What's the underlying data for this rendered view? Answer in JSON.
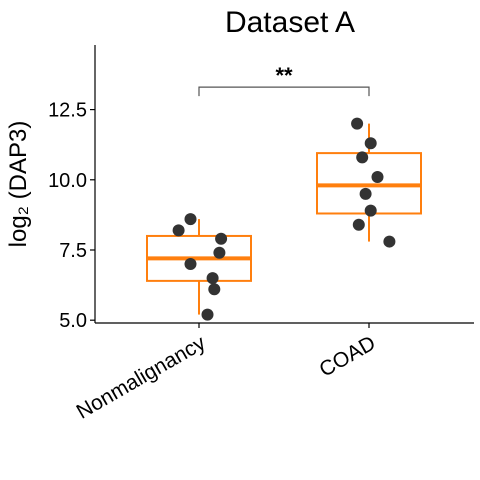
{
  "chart_data": {
    "type": "box",
    "title": "Dataset A",
    "ylabel": "log₂ (DAP3)",
    "xlabel": "",
    "categories": [
      "Nonmalignancy",
      "COAD"
    ],
    "ylim": [
      4.9,
      14.8
    ],
    "yticks": [
      5.0,
      7.5,
      10.0,
      12.5
    ],
    "ytick_labels": [
      "5.0",
      "7.5",
      "10.0",
      "12.5"
    ],
    "grid": false,
    "box_color": "#ff7f0e",
    "point_color": "#333333",
    "boxes": [
      {
        "category": "Nonmalignancy",
        "whisker_low": 5.2,
        "q1": 6.4,
        "median": 7.2,
        "q3": 8.0,
        "whisker_high": 8.6
      },
      {
        "category": "COAD",
        "whisker_low": 7.8,
        "q1": 8.8,
        "median": 9.8,
        "q3": 10.95,
        "whisker_high": 12.0
      }
    ],
    "points": [
      {
        "category": "Nonmalignancy",
        "jitter": -0.05,
        "y": 8.6
      },
      {
        "category": "Nonmalignancy",
        "jitter": -0.12,
        "y": 8.2
      },
      {
        "category": "Nonmalignancy",
        "jitter": 0.13,
        "y": 7.9
      },
      {
        "category": "Nonmalignancy",
        "jitter": 0.12,
        "y": 7.4
      },
      {
        "category": "Nonmalignancy",
        "jitter": -0.05,
        "y": 7.0
      },
      {
        "category": "Nonmalignancy",
        "jitter": 0.08,
        "y": 6.5
      },
      {
        "category": "Nonmalignancy",
        "jitter": 0.09,
        "y": 6.1
      },
      {
        "category": "Nonmalignancy",
        "jitter": 0.05,
        "y": 5.2
      },
      {
        "category": "COAD",
        "jitter": -0.07,
        "y": 12.0
      },
      {
        "category": "COAD",
        "jitter": 0.01,
        "y": 11.3
      },
      {
        "category": "COAD",
        "jitter": -0.04,
        "y": 10.8
      },
      {
        "category": "COAD",
        "jitter": 0.05,
        "y": 10.1
      },
      {
        "category": "COAD",
        "jitter": -0.02,
        "y": 9.5
      },
      {
        "category": "COAD",
        "jitter": 0.01,
        "y": 8.9
      },
      {
        "category": "COAD",
        "jitter": -0.06,
        "y": 8.4
      },
      {
        "category": "COAD",
        "jitter": 0.12,
        "y": 7.8
      }
    ],
    "annotations": [
      {
        "type": "significance-bracket",
        "from": "Nonmalignancy",
        "to": "COAD",
        "y": 13.3,
        "label": "**"
      }
    ]
  }
}
